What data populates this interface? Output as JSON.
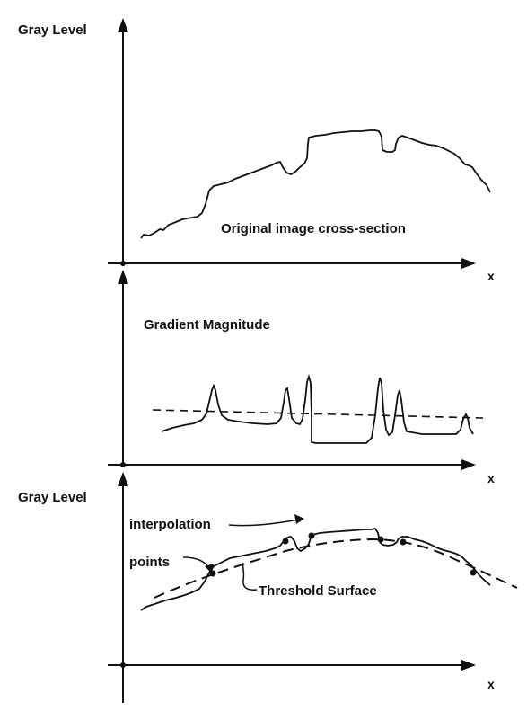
{
  "panel_top": {
    "y_axis_label": "Gray Level",
    "x_axis_label": "x",
    "curve_label": "Original image cross-section"
  },
  "panel_middle": {
    "title": "Gradient Magnitude",
    "x_axis_label": "x"
  },
  "panel_bottom": {
    "y_axis_label": "Gray Level",
    "x_axis_label": "x",
    "annotation_interpolation": "interpolation",
    "annotation_points": "points",
    "annotation_threshold": "Threshold Surface"
  },
  "colors": {
    "ink": "#111111",
    "background": "#ffffff"
  }
}
